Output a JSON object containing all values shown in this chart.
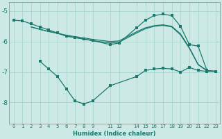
{
  "xlabel": "Humidex (Indice chaleur)",
  "background_color": "#cce9e5",
  "grid_color": "#aad4cf",
  "line_color": "#1a7a6e",
  "xticks": [
    0,
    1,
    2,
    3,
    4,
    5,
    6,
    7,
    8,
    9,
    11,
    12,
    14,
    15,
    16,
    17,
    18,
    19,
    20,
    21,
    22,
    23
  ],
  "yticks": [
    -5,
    -6,
    -7,
    -8
  ],
  "ylim": [
    -8.7,
    -4.7
  ],
  "xlim": [
    -0.5,
    23.5
  ],
  "line1_x": [
    0,
    1,
    2,
    3,
    4,
    5,
    6,
    7,
    8,
    9,
    11,
    12,
    14,
    15,
    16,
    17,
    18,
    19,
    20,
    21,
    22,
    23
  ],
  "line1_y": [
    -5.3,
    -5.32,
    -5.42,
    -5.52,
    -5.62,
    -5.72,
    -5.82,
    -5.87,
    -5.92,
    -5.97,
    -6.1,
    -6.05,
    -5.55,
    -5.3,
    -5.15,
    -5.1,
    -5.15,
    -5.5,
    -6.1,
    -6.15,
    -6.95,
    -6.98
  ],
  "line2_x": [
    2,
    3,
    4,
    5,
    6,
    7,
    8,
    9,
    11,
    12,
    14,
    15,
    16,
    17,
    18,
    19,
    20,
    21,
    22,
    23
  ],
  "line2_y": [
    -5.52,
    -5.6,
    -5.67,
    -5.73,
    -5.79,
    -5.84,
    -5.88,
    -5.93,
    -6.0,
    -5.98,
    -5.68,
    -5.55,
    -5.48,
    -5.45,
    -5.5,
    -5.75,
    -6.2,
    -6.75,
    -6.95,
    -6.98
  ],
  "line3_x": [
    2,
    3,
    4,
    5,
    6,
    7,
    8,
    9,
    11,
    12,
    14,
    15,
    16,
    17,
    18,
    19,
    20,
    21,
    22,
    23
  ],
  "line3_y": [
    -5.52,
    -5.6,
    -5.67,
    -5.73,
    -5.82,
    -5.87,
    -5.92,
    -5.97,
    -6.05,
    -6.02,
    -5.72,
    -5.58,
    -5.5,
    -5.47,
    -5.52,
    -5.78,
    -6.22,
    -6.76,
    -6.96,
    -6.98
  ],
  "line4_x": [
    3,
    4,
    5,
    6,
    7,
    8,
    9,
    11,
    14,
    15,
    16,
    17,
    18,
    19,
    20,
    21,
    22,
    23
  ],
  "line4_y": [
    -6.65,
    -6.9,
    -7.15,
    -7.55,
    -7.95,
    -8.05,
    -7.95,
    -7.45,
    -7.15,
    -6.95,
    -6.9,
    -6.88,
    -6.9,
    -7.0,
    -6.85,
    -6.95,
    -6.98,
    -6.98
  ]
}
